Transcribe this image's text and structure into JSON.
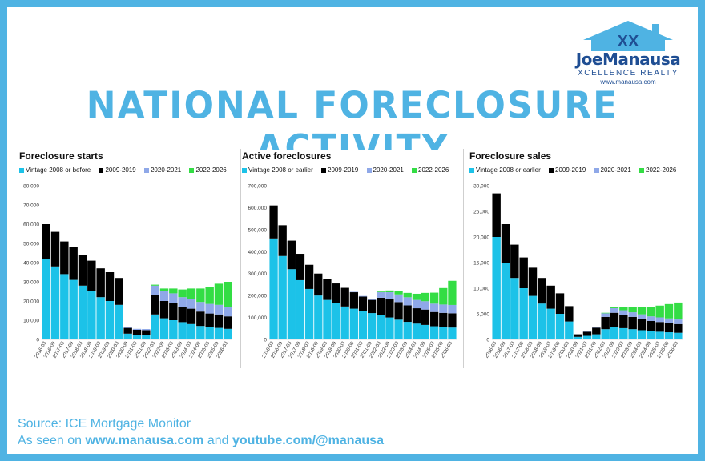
{
  "header": {
    "title": "NATIONAL FORECLOSURE ACTIVITY"
  },
  "logo": {
    "brand_first": "Joe",
    "brand_second": "Manausa",
    "tagline": "XCELLENCE REALTY",
    "url": "www.manausa.com"
  },
  "footer": {
    "source": "Source: ICE Mortgage Monitor",
    "seen_prefix": "As seen on ",
    "seen_site": "www.manausa.com",
    "seen_and": " and ",
    "seen_youtube": "youtube.com/@manausa"
  },
  "colors": {
    "frame": "#4fb3e3",
    "vintage_old": "#1cc2e8",
    "vintage_2009_2019": "#000000",
    "vintage_2020_2021": "#8fa8e8",
    "vintage_2022_2026": "#33dd44"
  },
  "chart_data": [
    {
      "type": "bar",
      "stacked": true,
      "title": "Foreclosure starts",
      "ylim": [
        0,
        80000
      ],
      "yticks": [
        "0",
        "10,000",
        "20,000",
        "30,000",
        "40,000",
        "50,000",
        "60,000",
        "70,000",
        "80,000"
      ],
      "xticks": [
        "2016-03",
        "2016-09",
        "2017-03",
        "2017-09",
        "2018-03",
        "2018-09",
        "2019-03",
        "2019-09",
        "2020-03",
        "2020-09",
        "2021-03",
        "2021-09",
        "2022-03",
        "2022-09",
        "2023-03",
        "2023-09",
        "2024-03",
        "2024-09",
        "2025-03",
        "2025-09",
        "2026-03"
      ],
      "legend": [
        "Vintage 2008 or before",
        "2009-2019",
        "2020-2021",
        "2022-2026"
      ],
      "series": [
        {
          "name": "Vintage 2008 or before",
          "values": [
            42000,
            38000,
            34000,
            31000,
            28000,
            25000,
            22000,
            20000,
            18000,
            3000,
            2500,
            2300,
            13000,
            11000,
            10000,
            9000,
            8000,
            7000,
            6500,
            6000,
            5500
          ]
        },
        {
          "name": "2009-2019",
          "values": [
            18000,
            18000,
            17000,
            17000,
            16000,
            16000,
            15000,
            15000,
            14000,
            3000,
            2500,
            2500,
            10000,
            9000,
            9000,
            8000,
            8000,
            7500,
            7000,
            7000,
            6500
          ]
        },
        {
          "name": "2020-2021",
          "values": [
            0,
            0,
            0,
            0,
            0,
            0,
            0,
            0,
            0,
            300,
            500,
            600,
            5000,
            5000,
            5000,
            5000,
            5000,
            5000,
            5000,
            5000,
            5000
          ]
        },
        {
          "name": "2022-2026",
          "values": [
            0,
            0,
            0,
            0,
            0,
            0,
            0,
            0,
            0,
            0,
            0,
            0,
            500,
            1500,
            2500,
            4000,
            5500,
            7000,
            9000,
            11000,
            13000
          ]
        }
      ]
    },
    {
      "type": "bar",
      "stacked": true,
      "title": "Active foreclosures",
      "ylim": [
        0,
        700000
      ],
      "yticks": [
        "0",
        "100,000",
        "200,000",
        "300,000",
        "400,000",
        "500,000",
        "600,000",
        "700,000"
      ],
      "xticks": [
        "2016-03",
        "2016-09",
        "2017-03",
        "2017-09",
        "2018-03",
        "2018-09",
        "2019-03",
        "2019-09",
        "2020-03",
        "2020-09",
        "2021-03",
        "2021-09",
        "2022-03",
        "2022-09",
        "2023-03",
        "2023-09",
        "2024-03",
        "2024-09",
        "2025-03",
        "2025-09",
        "2026-03"
      ],
      "legend": [
        "Vintage 2008 or earlier",
        "2009-2019",
        "2020-2021",
        "2022-2026"
      ],
      "series": [
        {
          "name": "Vintage 2008 or earlier",
          "values": [
            460000,
            380000,
            320000,
            270000,
            230000,
            200000,
            180000,
            165000,
            150000,
            140000,
            130000,
            120000,
            110000,
            100000,
            90000,
            80000,
            72000,
            66000,
            60000,
            56000,
            54000
          ]
        },
        {
          "name": "2009-2019",
          "values": [
            150000,
            140000,
            130000,
            120000,
            110000,
            100000,
            95000,
            90000,
            85000,
            75000,
            65000,
            60000,
            80000,
            85000,
            80000,
            75000,
            70000,
            70000,
            65000,
            65000,
            65000
          ]
        },
        {
          "name": "2020-2021",
          "values": [
            0,
            0,
            0,
            0,
            0,
            0,
            0,
            0,
            0,
            2000,
            3000,
            5000,
            25000,
            30000,
            35000,
            37000,
            38000,
            38000,
            38000,
            38000,
            38000
          ]
        },
        {
          "name": "2022-2026",
          "values": [
            0,
            0,
            0,
            0,
            0,
            0,
            0,
            0,
            0,
            0,
            0,
            0,
            3000,
            8000,
            14000,
            20000,
            28000,
            38000,
            50000,
            75000,
            110000
          ]
        }
      ]
    },
    {
      "type": "bar",
      "stacked": true,
      "title": "Foreclosure sales",
      "ylim": [
        0,
        30000
      ],
      "yticks": [
        "0",
        "5,000",
        "10,000",
        "15,000",
        "20,000",
        "25,000",
        "30,000"
      ],
      "xticks": [
        "2016-03",
        "2016-09",
        "2017-03",
        "2017-09",
        "2018-03",
        "2018-09",
        "2019-03",
        "2019-09",
        "2020-03",
        "2020-09",
        "2021-03",
        "2021-09",
        "2022-03",
        "2022-09",
        "2023-03",
        "2023-09",
        "2024-03",
        "2024-09",
        "2025-03",
        "2025-09",
        "2026-03"
      ],
      "legend": [
        "Vintage 2008 or earlier",
        "2009-2019",
        "2020-2021",
        "2022-2026"
      ],
      "series": [
        {
          "name": "Vintage 2008 or earlier",
          "values": [
            20000,
            15000,
            12000,
            10000,
            8500,
            7000,
            6000,
            5000,
            3500,
            500,
            700,
            1000,
            2000,
            2400,
            2200,
            2000,
            1800,
            1600,
            1500,
            1400,
            1300
          ]
        },
        {
          "name": "2009-2019",
          "values": [
            8500,
            7500,
            6500,
            6000,
            5500,
            5000,
            4500,
            4000,
            3000,
            500,
            800,
            1300,
            2400,
            2800,
            2600,
            2400,
            2200,
            2000,
            1900,
            1800,
            1700
          ]
        },
        {
          "name": "2020-2021",
          "values": [
            0,
            0,
            0,
            0,
            0,
            0,
            0,
            0,
            0,
            0,
            50,
            100,
            700,
            900,
            900,
            900,
            900,
            900,
            900,
            900,
            900
          ]
        },
        {
          "name": "2022-2026",
          "values": [
            0,
            0,
            0,
            0,
            0,
            0,
            0,
            0,
            0,
            0,
            0,
            0,
            100,
            300,
            600,
            1000,
            1400,
            1800,
            2300,
            2800,
            3300
          ]
        }
      ]
    }
  ]
}
